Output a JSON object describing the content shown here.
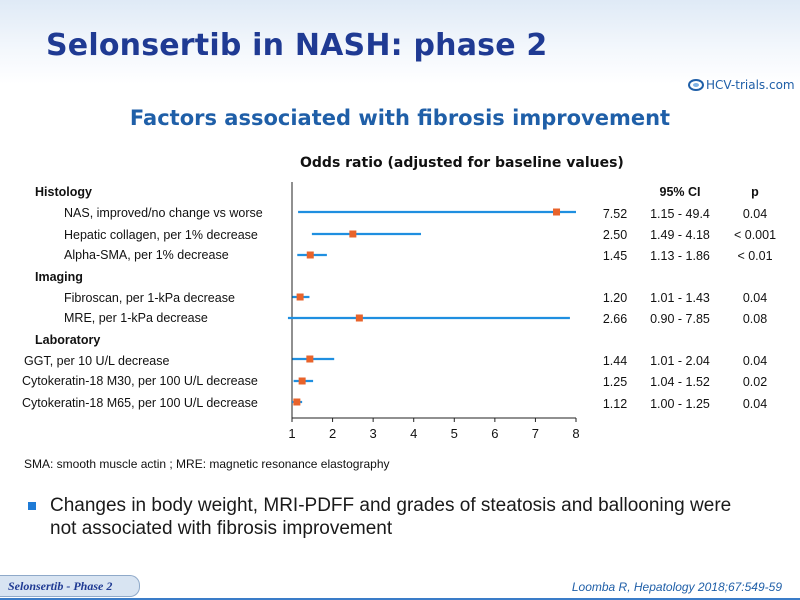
{
  "slide": {
    "title": "Selonsertib in NASH: phase 2",
    "subtitle": "Factors associated with fibrosis improvement",
    "logo_text": "HCV-trials.com",
    "footnote": "SMA: smooth muscle actin ; MRE: magnetic resonance elastography",
    "bullet": "Changes in body weight, MRI-PDFF and grades of steatosis and ballooning were not associated with fibrosis improvement",
    "tag": "Selonsertib - Phase 2",
    "reference": "Loomba R, Hepatology 2018;67:549-59"
  },
  "colors": {
    "title": "#1f3a93",
    "accent": "#1f5fa8",
    "ci_line": "#1f8fe0",
    "point": "#e8632b"
  },
  "chart_data": {
    "type": "forest",
    "title": "Odds ratio (adjusted for baseline values)",
    "xlim": [
      1,
      8
    ],
    "xticks": [
      "1",
      "2",
      "3",
      "4",
      "5",
      "6",
      "7",
      "8"
    ],
    "columns": {
      "ci": "95% CI",
      "p": "p"
    },
    "sections": [
      {
        "label": "Histology"
      },
      {
        "label": "Imaging"
      },
      {
        "label": "Laboratory"
      }
    ],
    "rows": [
      {
        "section": 0,
        "label": "NAS, improved/no change vs worse",
        "or": 7.52,
        "lo": 1.15,
        "hi": 49.4,
        "or_text": "7.52",
        "ci_text": "1.15 - 49.4",
        "p": "0.04"
      },
      {
        "section": 0,
        "label": "Hepatic collagen, per 1% decrease",
        "or": 2.5,
        "lo": 1.49,
        "hi": 4.18,
        "or_text": "2.50",
        "ci_text": "1.49 - 4.18",
        "p": "< 0.001"
      },
      {
        "section": 0,
        "label": "Alpha-SMA, per 1% decrease",
        "or": 1.45,
        "lo": 1.13,
        "hi": 1.86,
        "or_text": "1.45",
        "ci_text": "1.13 - 1.86",
        "p": "< 0.01"
      },
      {
        "section": 1,
        "label": "Fibroscan, per 1-kPa decrease",
        "or": 1.2,
        "lo": 1.01,
        "hi": 1.43,
        "or_text": "1.20",
        "ci_text": "1.01 - 1.43",
        "p": "0.04"
      },
      {
        "section": 1,
        "label": "MRE, per 1-kPa decrease",
        "or": 2.66,
        "lo": 0.9,
        "hi": 7.85,
        "or_text": "2.66",
        "ci_text": "0.90 - 7.85",
        "p": "0.08"
      },
      {
        "section": 2,
        "label": "GGT, per 10 U/L decrease",
        "or": 1.44,
        "lo": 1.01,
        "hi": 2.04,
        "or_text": "1.44",
        "ci_text": "1.01 - 2.04",
        "p": "0.04"
      },
      {
        "section": 2,
        "label": "Cytokeratin-18 M30, per 100 U/L decrease",
        "or": 1.25,
        "lo": 1.04,
        "hi": 1.52,
        "or_text": "1.25",
        "ci_text": "1.04 - 1.52",
        "p": "0.02"
      },
      {
        "section": 2,
        "label": "Cytokeratin-18 M65, per 100 U/L decrease",
        "or": 1.12,
        "lo": 1.0,
        "hi": 1.25,
        "or_text": "1.12",
        "ci_text": "1.00 - 1.25",
        "p": "0.04"
      }
    ]
  }
}
